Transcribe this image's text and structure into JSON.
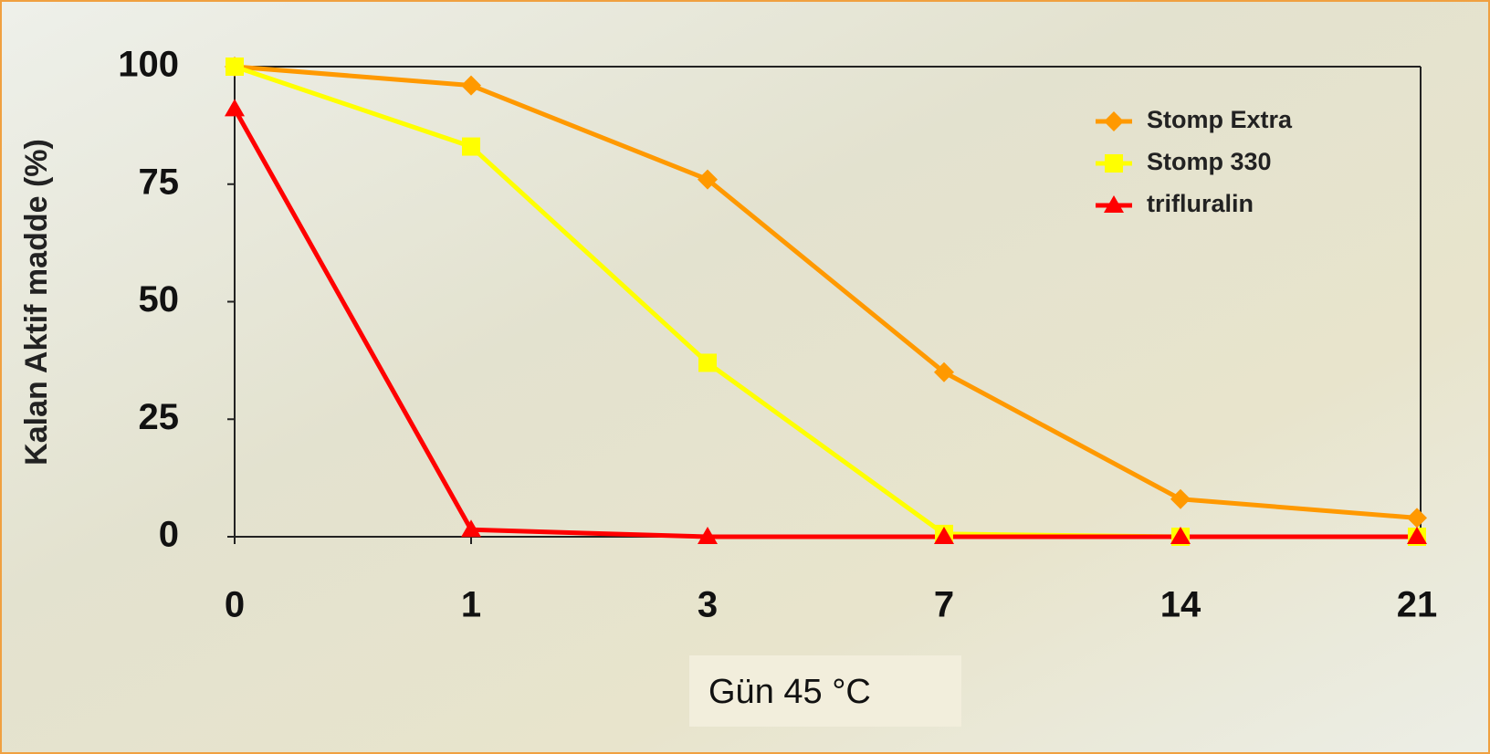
{
  "chart_data": {
    "type": "line",
    "y_label": "Kalan Aktif madde (%)",
    "x_label": "Gün 45 °C",
    "categories": [
      "0",
      "1",
      "3",
      "7",
      "14",
      "21"
    ],
    "ylim": [
      0,
      100
    ],
    "yticks": [
      0,
      25,
      50,
      75,
      100
    ],
    "legend": "upper right",
    "series": [
      {
        "name": "Stomp Extra",
        "color": "#ff9900",
        "marker": "diamond",
        "values": [
          100,
          96,
          76,
          35,
          8,
          4
        ]
      },
      {
        "name": "Stomp 330",
        "color": "#ffff00",
        "marker": "square",
        "values": [
          100,
          83,
          37,
          0.6,
          0,
          0
        ]
      },
      {
        "name": "trifluralin",
        "color": "#ff0000",
        "marker": "triangle",
        "values": [
          91,
          1.5,
          0,
          0,
          0,
          0
        ]
      }
    ]
  }
}
